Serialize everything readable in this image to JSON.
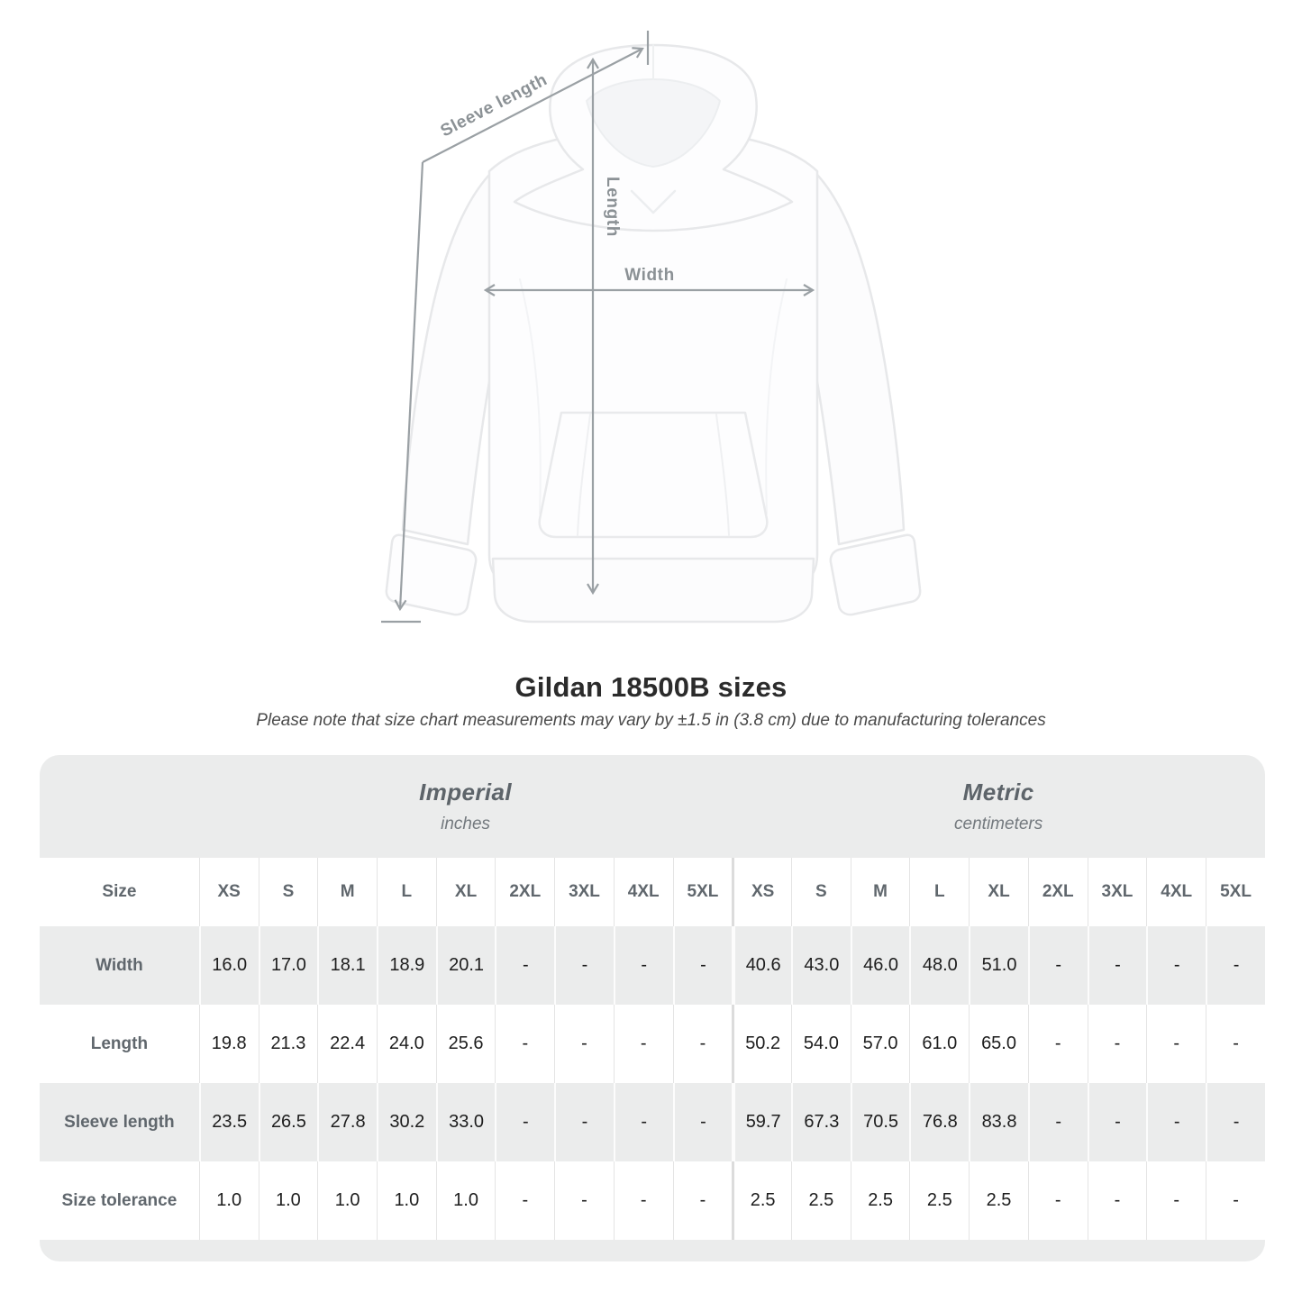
{
  "diagram": {
    "labels": {
      "sleeve_length": "Sleeve length",
      "length": "Length",
      "width": "Width"
    }
  },
  "chart_data": {
    "type": "table",
    "title": "Gildan 18500B sizes",
    "note": "Please note that size chart measurements may vary by ±1.5 in (3.8 cm) due to manufacturing tolerances",
    "corner_header": "Size",
    "unit_groups": [
      {
        "label": "Imperial",
        "units": "inches"
      },
      {
        "label": "Metric",
        "units": "centimeters"
      }
    ],
    "sizes": [
      "XS",
      "S",
      "M",
      "L",
      "XL",
      "2XL",
      "3XL",
      "4XL",
      "5XL"
    ],
    "rows": [
      {
        "label": "Width",
        "imperial": [
          "16.0",
          "17.0",
          "18.1",
          "18.9",
          "20.1",
          "-",
          "-",
          "-",
          "-"
        ],
        "metric": [
          "40.6",
          "43.0",
          "46.0",
          "48.0",
          "51.0",
          "-",
          "-",
          "-",
          "-"
        ]
      },
      {
        "label": "Length",
        "imperial": [
          "19.8",
          "21.3",
          "22.4",
          "24.0",
          "25.6",
          "-",
          "-",
          "-",
          "-"
        ],
        "metric": [
          "50.2",
          "54.0",
          "57.0",
          "61.0",
          "65.0",
          "-",
          "-",
          "-",
          "-"
        ]
      },
      {
        "label": "Sleeve length",
        "imperial": [
          "23.5",
          "26.5",
          "27.8",
          "30.2",
          "33.0",
          "-",
          "-",
          "-",
          "-"
        ],
        "metric": [
          "59.7",
          "67.3",
          "70.5",
          "76.8",
          "83.8",
          "-",
          "-",
          "-",
          "-"
        ]
      },
      {
        "label": "Size tolerance",
        "imperial": [
          "1.0",
          "1.0",
          "1.0",
          "1.0",
          "1.0",
          "-",
          "-",
          "-",
          "-"
        ],
        "metric": [
          "2.5",
          "2.5",
          "2.5",
          "2.5",
          "2.5",
          "-",
          "-",
          "-",
          "-"
        ]
      }
    ]
  },
  "colors": {
    "card_gray": "#ebecec",
    "row_white": "#ffffff",
    "separator_light": "#e4e4e4",
    "arrow_gray": "#9aa0a4",
    "measure_label_gray": "#8b9195",
    "header_text": "#60676d",
    "data_text": "#1d1d1d",
    "title_text": "#2b2b2b"
  }
}
